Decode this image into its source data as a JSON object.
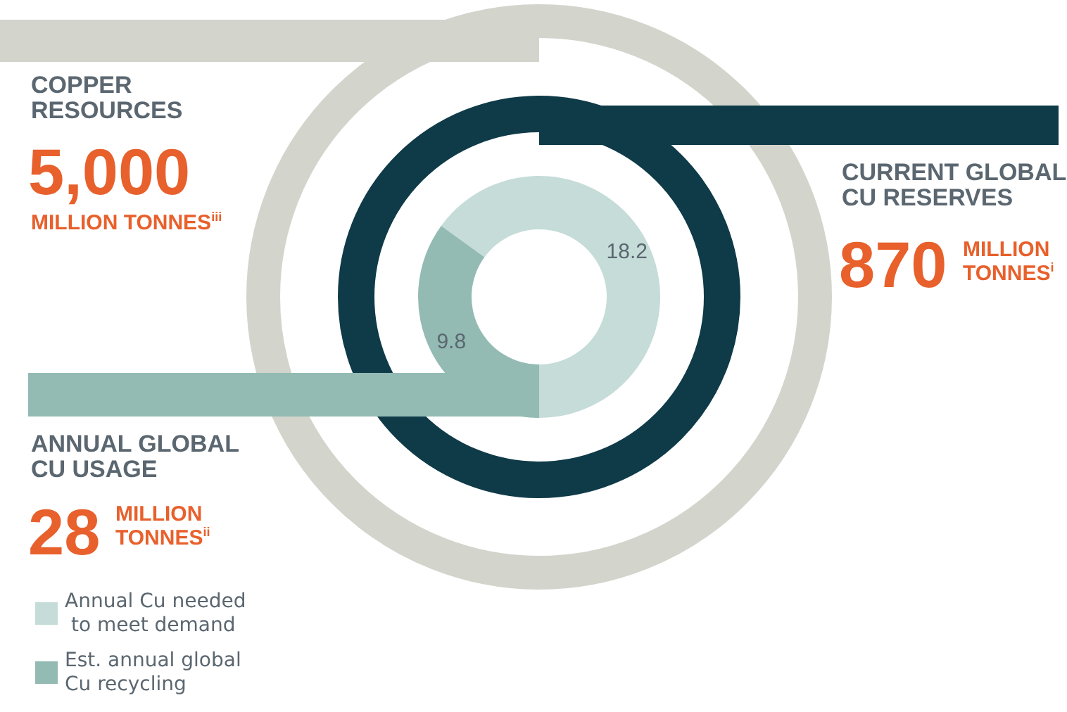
{
  "chart_data": {
    "type": "donut",
    "categories": [
      "Annual Cu needed to meet demand",
      "Est. annual global Cu recycling"
    ],
    "values": [
      18.2,
      9.8
    ],
    "colors": [
      "#c5dcd8",
      "#93bbb3"
    ],
    "data_labels": true,
    "legend": "bottom left",
    "annotations": [
      "COPPER RESOURCES",
      "5,000",
      "MILLION TONNES$^{iii}$",
      "CURRENT GLOBAL CU RESERVES",
      "870",
      "MILLION TONNES$^{i}$",
      "ANNUAL GLOBAL CU USAGE",
      "28",
      "MILLION TONNES$^{ii}$"
    ]
  }
}
